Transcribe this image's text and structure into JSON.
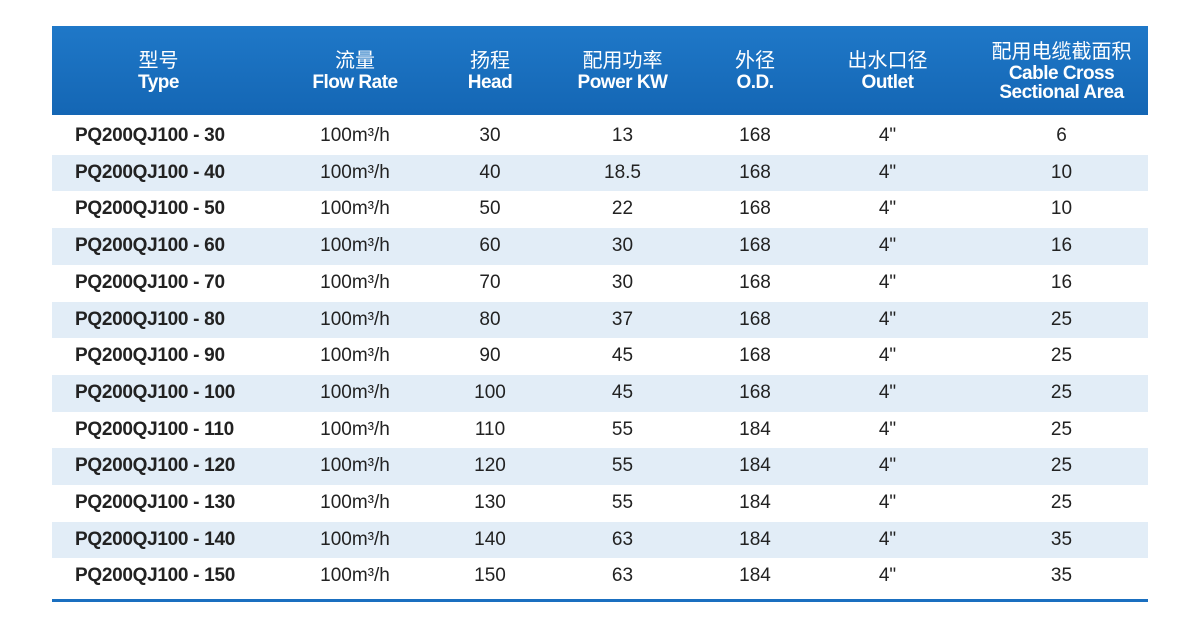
{
  "table": {
    "columns": [
      {
        "zh": "型号",
        "en": "Type"
      },
      {
        "zh": "流量",
        "en": "Flow Rate"
      },
      {
        "zh": "扬程",
        "en": "Head"
      },
      {
        "zh": "配用功率",
        "en": "Power KW"
      },
      {
        "zh": "外径",
        "en": "O.D."
      },
      {
        "zh": "出水口径",
        "en": "Outlet"
      },
      {
        "zh": "配用电缆截面积",
        "en": "Cable Cross Sectional Area"
      }
    ],
    "rows": [
      [
        "PQ200QJ100 - 30",
        "100m³/h",
        "30",
        "13",
        "168",
        "4\"",
        "6"
      ],
      [
        "PQ200QJ100 - 40",
        "100m³/h",
        "40",
        "18.5",
        "168",
        "4\"",
        "10"
      ],
      [
        "PQ200QJ100 - 50",
        "100m³/h",
        "50",
        "22",
        "168",
        "4\"",
        "10"
      ],
      [
        "PQ200QJ100 - 60",
        "100m³/h",
        "60",
        "30",
        "168",
        "4\"",
        "16"
      ],
      [
        "PQ200QJ100 - 70",
        "100m³/h",
        "70",
        "30",
        "168",
        "4\"",
        "16"
      ],
      [
        "PQ200QJ100 - 80",
        "100m³/h",
        "80",
        "37",
        "168",
        "4\"",
        "25"
      ],
      [
        "PQ200QJ100 - 90",
        "100m³/h",
        "90",
        "45",
        "168",
        "4\"",
        "25"
      ],
      [
        "PQ200QJ100 - 100",
        "100m³/h",
        "100",
        "45",
        "168",
        "4\"",
        "25"
      ],
      [
        "PQ200QJ100 - 110",
        "100m³/h",
        "110",
        "55",
        "184",
        "4\"",
        "25"
      ],
      [
        "PQ200QJ100 - 120",
        "100m³/h",
        "120",
        "55",
        "184",
        "4\"",
        "25"
      ],
      [
        "PQ200QJ100 - 130",
        "100m³/h",
        "130",
        "55",
        "184",
        "4\"",
        "25"
      ],
      [
        "PQ200QJ100 - 140",
        "100m³/h",
        "140",
        "63",
        "184",
        "4\"",
        "35"
      ],
      [
        "PQ200QJ100 - 150",
        "100m³/h",
        "150",
        "63",
        "184",
        "4\"",
        "35"
      ]
    ]
  }
}
